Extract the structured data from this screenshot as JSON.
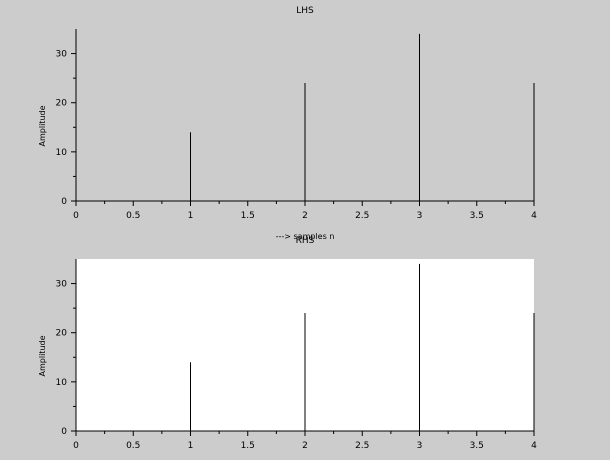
{
  "figure": {
    "background": "#cccccc"
  },
  "chart_data": [
    {
      "type": "bar",
      "title": "LHS",
      "xlabel": "---> samples n",
      "ylabel": "Amplitude",
      "x": [
        0,
        1,
        2,
        3,
        4
      ],
      "values": [
        0,
        14,
        24,
        34,
        24
      ],
      "xlim": [
        0,
        4
      ],
      "ylim": [
        0,
        35
      ],
      "xticks": [
        "0",
        "0.5",
        "1",
        "1.5",
        "2",
        "2.5",
        "3",
        "3.5",
        "4"
      ],
      "yticks": [
        "0",
        "10",
        "20",
        "30"
      ],
      "plot_background": "#cccccc",
      "grid": false
    },
    {
      "type": "bar",
      "title": "RHS",
      "xlabel": "",
      "ylabel": "Amplitude",
      "x": [
        0,
        1,
        2,
        3,
        4
      ],
      "values": [
        0,
        14,
        24,
        34,
        24
      ],
      "xlim": [
        0,
        4
      ],
      "ylim": [
        0,
        35
      ],
      "xticks": [
        "0",
        "0.5",
        "1",
        "1.5",
        "2",
        "2.5",
        "3",
        "3.5",
        "4"
      ],
      "yticks": [
        "0",
        "10",
        "20",
        "30"
      ],
      "plot_background": "#ffffff",
      "grid": false
    }
  ]
}
